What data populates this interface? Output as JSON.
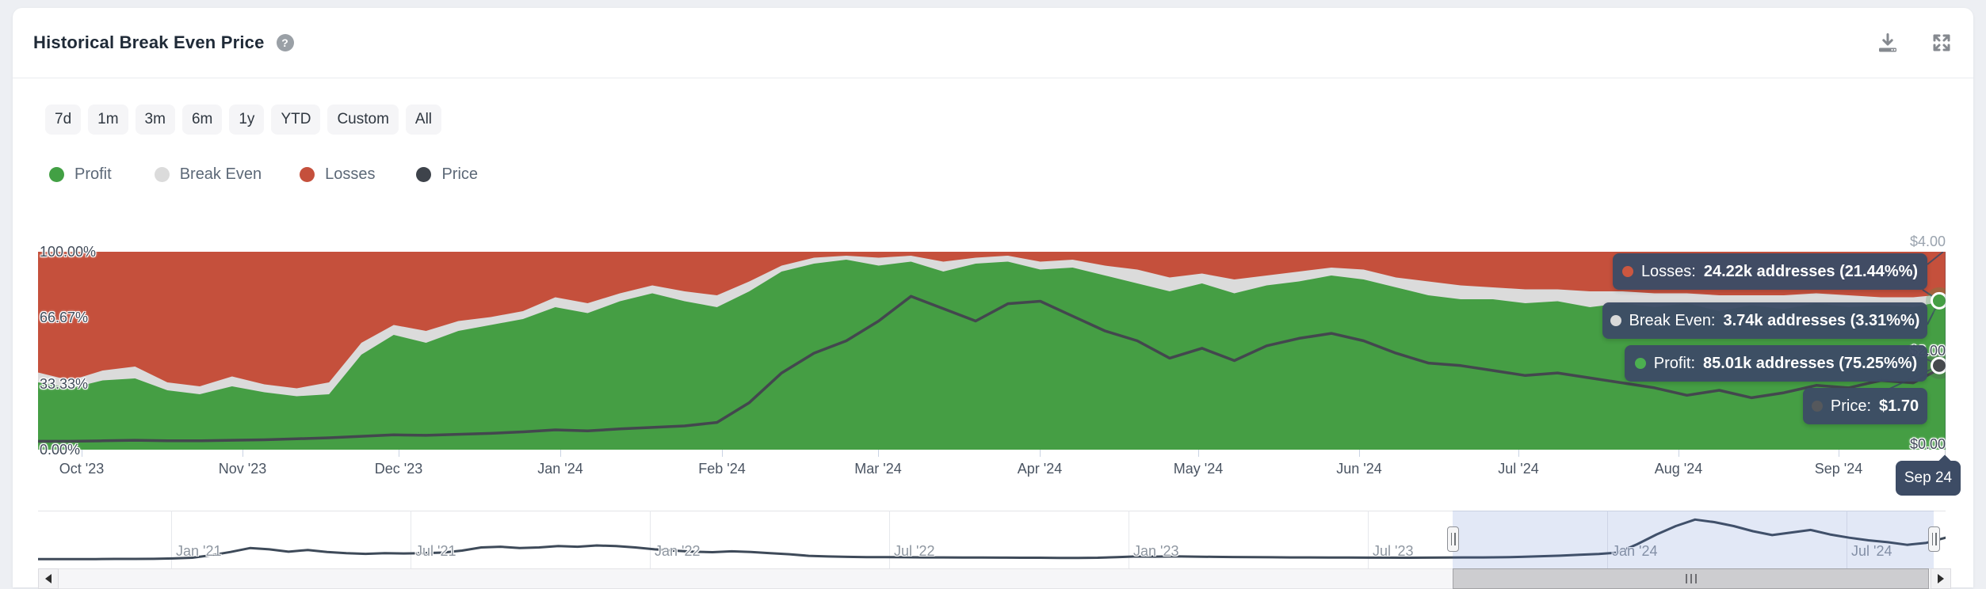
{
  "header": {
    "title": "Historical Break Even Price",
    "help_icon": "?",
    "icons": [
      "download-icon",
      "expand-icon"
    ]
  },
  "ranges": [
    {
      "label": "7d"
    },
    {
      "label": "1m"
    },
    {
      "label": "3m"
    },
    {
      "label": "6m"
    },
    {
      "label": "1y"
    },
    {
      "label": "YTD"
    },
    {
      "label": "Custom"
    },
    {
      "label": "All"
    }
  ],
  "legend": [
    {
      "label": "Profit",
      "color": "#42a044"
    },
    {
      "label": "Break Even",
      "color": "#dbdbdb"
    },
    {
      "label": "Losses",
      "color": "#c5503c"
    },
    {
      "label": "Price",
      "color": "#3e434b"
    }
  ],
  "tooltip": {
    "rows": [
      {
        "label": "Losses:",
        "value": "24.22k addresses (21.44%%)",
        "color": "#cb5740"
      },
      {
        "label": "Break Even:",
        "value": "3.74k addresses (3.31%%)",
        "color": "#d9d9d9"
      },
      {
        "label": "Profit:",
        "value": "85.01k addresses (75.25%%)",
        "color": "#4caf50"
      },
      {
        "label": "Price:",
        "value": "$1.70",
        "color": "#55585c"
      }
    ]
  },
  "crosshair_label": "Sep 24",
  "chart_data": {
    "type": "area",
    "title": "Historical Break Even Price",
    "stacking": "percent",
    "x_labels": [
      "Oct '23",
      "Nov '23",
      "Dec '23",
      "Jan '24",
      "Feb '24",
      "Mar '24",
      "Apr '24",
      "May '24",
      "Jun '24",
      "Jul '24",
      "Aug '24",
      "Sep '24"
    ],
    "y_left": {
      "labels": [
        "100.00%",
        "66.67%",
        "33.33%",
        "0.00%"
      ],
      "range": [
        0,
        100
      ],
      "unit": "%"
    },
    "y_right": {
      "labels": [
        "$4.00",
        "$2.00",
        "$0.00"
      ],
      "range": [
        0,
        4
      ],
      "unit": "USD"
    },
    "grid": false,
    "legend_position": "top-left",
    "series": [
      {
        "name": "Profit",
        "color": "#459e44",
        "unit": "%",
        "values": [
          34,
          31,
          35,
          36,
          30,
          28,
          32,
          29,
          27,
          28,
          48,
          58,
          54,
          60,
          63,
          66,
          72,
          69,
          75,
          79,
          75,
          72,
          80,
          90,
          94,
          96,
          93,
          95,
          90,
          94,
          95,
          91,
          92,
          88,
          84,
          80,
          84,
          79,
          83,
          85,
          88,
          86,
          82,
          78,
          76,
          76,
          74,
          75,
          72,
          74,
          72,
          74,
          70,
          73,
          71,
          74,
          72,
          73,
          72,
          75.25
        ]
      },
      {
        "name": "Break Even",
        "color": "#dbdbdb",
        "unit": "%",
        "values": [
          5,
          4,
          5,
          6,
          4,
          4,
          5,
          4,
          4,
          6,
          6,
          5,
          6,
          5,
          4,
          4,
          5,
          5,
          4,
          4,
          5,
          6,
          5,
          3,
          3,
          2,
          4,
          3,
          5,
          3,
          3,
          4,
          4,
          5,
          7,
          7,
          5,
          7,
          5,
          5,
          4,
          5,
          5,
          7,
          7,
          6,
          7,
          6,
          8,
          6,
          7,
          5,
          8,
          5,
          7,
          5,
          6,
          4,
          5,
          3.31
        ]
      },
      {
        "name": "Losses",
        "color": "#c5503c",
        "unit": "%",
        "values": [
          61,
          65,
          60,
          58,
          66,
          68,
          63,
          67,
          69,
          66,
          46,
          37,
          40,
          35,
          33,
          30,
          23,
          26,
          21,
          17,
          20,
          22,
          15,
          7,
          3,
          2,
          3,
          2,
          5,
          3,
          2,
          5,
          4,
          7,
          9,
          13,
          11,
          14,
          12,
          10,
          8,
          9,
          13,
          15,
          17,
          18,
          19,
          19,
          20,
          20,
          21,
          21,
          22,
          22,
          22,
          21,
          22,
          23,
          23,
          21.44
        ]
      }
    ],
    "price_line": {
      "name": "Price",
      "color": "#43474e",
      "unit": "USD",
      "values": [
        0.17,
        0.17,
        0.18,
        0.19,
        0.18,
        0.18,
        0.19,
        0.2,
        0.22,
        0.24,
        0.27,
        0.3,
        0.29,
        0.31,
        0.33,
        0.36,
        0.4,
        0.38,
        0.42,
        0.45,
        0.48,
        0.55,
        0.95,
        1.55,
        1.95,
        2.2,
        2.6,
        3.1,
        2.85,
        2.6,
        2.95,
        3.0,
        2.7,
        2.4,
        2.2,
        1.85,
        2.05,
        1.8,
        2.1,
        2.25,
        2.35,
        2.2,
        1.95,
        1.75,
        1.7,
        1.6,
        1.5,
        1.55,
        1.45,
        1.35,
        1.25,
        1.1,
        1.2,
        1.05,
        1.15,
        1.3,
        1.25,
        1.4,
        1.35,
        1.7
      ]
    },
    "last_point": {
      "profit_pct": 75.25,
      "price": 1.7,
      "date": "Sep 24"
    },
    "navigator": {
      "x_labels": [
        "Jan '21",
        "Jul '21",
        "Jan '22",
        "Jul '22",
        "Jan '23",
        "Jul '23",
        "Jan '24",
        "Jul '24"
      ],
      "line_color": "#3e4a59",
      "selected_range": [
        "Oct '23",
        "Sep '24"
      ],
      "values": [
        0.04,
        0.04,
        0.05,
        0.05,
        0.06,
        0.06,
        0.07,
        0.1,
        0.15,
        0.35,
        0.6,
        0.9,
        0.8,
        0.62,
        0.75,
        0.6,
        0.5,
        0.45,
        0.5,
        0.48,
        0.5,
        0.55,
        0.7,
        0.95,
        1.0,
        0.9,
        0.95,
        1.05,
        1.0,
        1.1,
        1.05,
        0.95,
        0.8,
        0.7,
        0.62,
        0.58,
        0.65,
        0.6,
        0.5,
        0.42,
        0.3,
        0.25,
        0.22,
        0.2,
        0.2,
        0.19,
        0.18,
        0.18,
        0.17,
        0.17,
        0.16,
        0.15,
        0.15,
        0.14,
        0.14,
        0.15,
        0.2,
        0.25,
        0.24,
        0.26,
        0.24,
        0.22,
        0.21,
        0.2,
        0.19,
        0.18,
        0.18,
        0.17,
        0.17,
        0.16,
        0.16,
        0.15,
        0.16,
        0.17,
        0.18,
        0.18,
        0.19,
        0.22,
        0.27,
        0.31,
        0.38,
        0.44,
        0.55,
        1.2,
        1.95,
        2.6,
        3.1,
        2.9,
        2.6,
        2.2,
        1.9,
        2.1,
        2.3,
        1.95,
        1.7,
        1.5,
        1.35,
        1.15,
        1.3,
        1.7
      ]
    }
  }
}
